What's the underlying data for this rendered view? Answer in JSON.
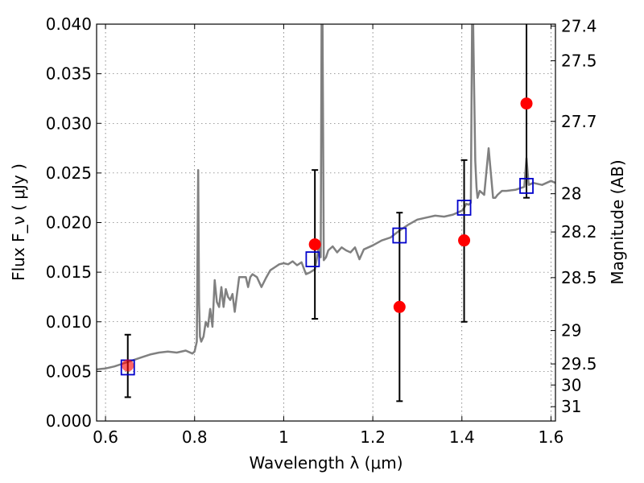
{
  "chart_data": {
    "type": "line",
    "title": "",
    "xlabel": "Wavelength  λ (μm)",
    "ylabel": "Flux  F_ν  ( μJy )",
    "ylabel_right": "Magnitude (AB)",
    "xlim": [
      0.58,
      1.61
    ],
    "ylim": [
      0.0,
      0.04
    ],
    "grid": true,
    "x_ticks": [
      {
        "value": 0.6,
        "label": "0.6"
      },
      {
        "value": 0.8,
        "label": "0.8"
      },
      {
        "value": 1.0,
        "label": "1"
      },
      {
        "value": 1.2,
        "label": "1.2"
      },
      {
        "value": 1.4,
        "label": "1.4"
      },
      {
        "value": 1.6,
        "label": "1.6"
      }
    ],
    "y_ticks": [
      {
        "value": 0.0,
        "label": "0.000"
      },
      {
        "value": 0.005,
        "label": "0.005"
      },
      {
        "value": 0.01,
        "label": "0.010"
      },
      {
        "value": 0.015,
        "label": "0.015"
      },
      {
        "value": 0.02,
        "label": "0.020"
      },
      {
        "value": 0.025,
        "label": "0.025"
      },
      {
        "value": 0.03,
        "label": "0.030"
      },
      {
        "value": 0.035,
        "label": "0.035"
      },
      {
        "value": 0.04,
        "label": "0.040"
      }
    ],
    "right_ticks": [
      {
        "value": 27.4,
        "label": "27.4"
      },
      {
        "value": 27.5,
        "label": "27.5"
      },
      {
        "value": 27.7,
        "label": "27.7"
      },
      {
        "value": 28,
        "label": "28"
      },
      {
        "value": 28.2,
        "label": "28.2"
      },
      {
        "value": 28.5,
        "label": "28.5"
      },
      {
        "value": 29,
        "label": "29"
      },
      {
        "value": 29.5,
        "label": "29.5"
      },
      {
        "value": 30,
        "label": "30"
      },
      {
        "value": 31,
        "label": "31"
      }
    ],
    "series": [
      {
        "kind": "spectrum",
        "color": "#808080",
        "x": [
          0.58,
          0.6,
          0.62,
          0.64,
          0.66,
          0.68,
          0.7,
          0.72,
          0.74,
          0.76,
          0.78,
          0.795,
          0.8,
          0.805,
          0.808,
          0.81,
          0.812,
          0.815,
          0.82,
          0.825,
          0.83,
          0.835,
          0.84,
          0.845,
          0.85,
          0.855,
          0.86,
          0.865,
          0.87,
          0.875,
          0.88,
          0.885,
          0.89,
          0.9,
          0.91,
          0.915,
          0.92,
          0.925,
          0.93,
          0.94,
          0.95,
          0.96,
          0.97,
          0.98,
          0.99,
          1.0,
          1.01,
          1.02,
          1.03,
          1.04,
          1.05,
          1.06,
          1.07,
          1.075,
          1.08,
          1.083,
          1.085,
          1.087,
          1.09,
          1.095,
          1.1,
          1.11,
          1.12,
          1.13,
          1.14,
          1.15,
          1.16,
          1.17,
          1.18,
          1.2,
          1.22,
          1.24,
          1.26,
          1.28,
          1.3,
          1.32,
          1.34,
          1.36,
          1.38,
          1.4,
          1.405,
          1.41,
          1.415,
          1.42,
          1.423,
          1.425,
          1.427,
          1.43,
          1.433,
          1.435,
          1.44,
          1.45,
          1.46,
          1.47,
          1.475,
          1.48,
          1.49,
          1.5,
          1.52,
          1.54,
          1.545,
          1.55,
          1.56,
          1.58,
          1.6,
          1.61
        ],
        "values": [
          0.0052,
          0.0053,
          0.0055,
          0.0058,
          0.0061,
          0.0064,
          0.0067,
          0.0069,
          0.007,
          0.0069,
          0.0071,
          0.0068,
          0.007,
          0.008,
          0.0253,
          0.012,
          0.0085,
          0.008,
          0.0085,
          0.01,
          0.0095,
          0.0113,
          0.0095,
          0.0142,
          0.012,
          0.0115,
          0.0135,
          0.0115,
          0.0133,
          0.0125,
          0.0122,
          0.0128,
          0.011,
          0.0145,
          0.0145,
          0.0145,
          0.0135,
          0.0145,
          0.0148,
          0.0145,
          0.0135,
          0.0144,
          0.0152,
          0.0155,
          0.0158,
          0.0159,
          0.0158,
          0.0161,
          0.0157,
          0.016,
          0.0148,
          0.015,
          0.0153,
          0.0165,
          0.018,
          0.0165,
          0.041,
          0.041,
          0.0162,
          0.0165,
          0.0172,
          0.0176,
          0.017,
          0.0175,
          0.0172,
          0.017,
          0.0175,
          0.0163,
          0.0173,
          0.0177,
          0.0182,
          0.0185,
          0.0192,
          0.0198,
          0.0203,
          0.0205,
          0.0207,
          0.0206,
          0.0208,
          0.0212,
          0.0215,
          0.0219,
          0.0218,
          0.022,
          0.041,
          0.041,
          0.035,
          0.0262,
          0.0235,
          0.0225,
          0.0232,
          0.0228,
          0.0275,
          0.0225,
          0.0225,
          0.0228,
          0.0232,
          0.0232,
          0.0233,
          0.0236,
          0.0265,
          0.0238,
          0.024,
          0.0238,
          0.0242,
          0.024
        ]
      },
      {
        "kind": "model_squares",
        "color": "#0000cc",
        "x": [
          0.65,
          1.065,
          1.26,
          1.405,
          1.545
        ],
        "values": [
          0.0054,
          0.0163,
          0.0187,
          0.0215,
          0.0237
        ]
      },
      {
        "kind": "observed_points",
        "color": "#ff0000",
        "x": [
          0.65,
          1.07,
          1.26,
          1.405,
          1.545
        ],
        "values": [
          0.0056,
          0.0178,
          0.0115,
          0.0182,
          0.032
        ],
        "err_low": [
          0.0024,
          0.0103,
          0.002,
          0.01,
          0.0225
        ],
        "err_high": [
          0.0087,
          0.0253,
          0.021,
          0.0263,
          0.041
        ]
      }
    ]
  }
}
